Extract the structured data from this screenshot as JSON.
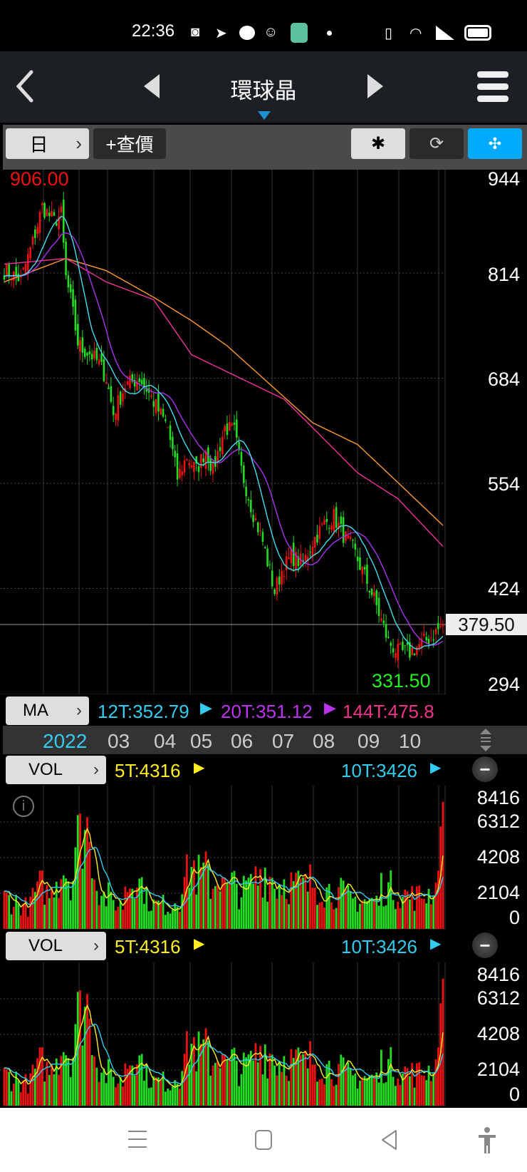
{
  "status_bar": {
    "time": "22:36",
    "icons": [
      "discord-icon",
      "telegram-icon",
      "line-icon",
      "gomaji-icon",
      "upload-icon",
      "dot-icon",
      "vibrate-icon",
      "wifi-icon",
      "signal-icon",
      "battery-icon"
    ]
  },
  "nav": {
    "title": "環球晶",
    "back_icon": "chevron-left-icon",
    "prev_icon": "triangle-left-icon",
    "next_icon": "triangle-right-icon",
    "menu_icon": "hamburger-icon"
  },
  "toolbar": {
    "period_label": "日",
    "quote_label": "+查價",
    "settings_icon": "gear-icon",
    "rotate_icon": "rotate-icon",
    "collapse_icon": "collapse-icon",
    "accent": "#00aaff"
  },
  "price_chart": {
    "high_label": "906.00",
    "low_label": "331.50",
    "last_price": "379.50",
    "y_ticks": [
      "944",
      "814",
      "684",
      "554",
      "424",
      "294"
    ]
  },
  "ma_row": {
    "button": "MA",
    "items": [
      {
        "text": "12T:352.79",
        "color": "#33ccee",
        "trend": "up"
      },
      {
        "text": "20T:351.12",
        "color": "#bb33ee",
        "trend": "down"
      },
      {
        "text": "144T:475.8",
        "color": "#ee3388"
      }
    ]
  },
  "date_axis": {
    "year": "2022",
    "months": [
      "03",
      "04",
      "05",
      "06",
      "07",
      "08",
      "09",
      "10"
    ]
  },
  "vol_panels": [
    {
      "button": "VOL",
      "ma5": "5T:4316",
      "ma10": "10T:3426",
      "y_ticks": [
        "8416",
        "6312",
        "4208",
        "2104",
        "0"
      ]
    },
    {
      "button": "VOL",
      "ma5": "5T:4316",
      "ma10": "10T:3426",
      "y_ticks": [
        "8416",
        "6312",
        "4208",
        "2104",
        "0"
      ]
    }
  ],
  "chart_data": {
    "type": "candlestick",
    "y_range": [
      294,
      944
    ],
    "colors": {
      "up": "#ee1111",
      "down": "#22dd22",
      "ma12": "#44ddee",
      "ma20": "#aa33ee",
      "ma144": "#ee3399",
      "ma_long": "#ff9933"
    },
    "close_anchors": [
      [
        0,
        817
      ],
      [
        7,
        806
      ],
      [
        12,
        852
      ],
      [
        16,
        896
      ],
      [
        21,
        878
      ],
      [
        24,
        887
      ],
      [
        26,
        808
      ],
      [
        28,
        781
      ],
      [
        31,
        728
      ],
      [
        33,
        719
      ],
      [
        36,
        715
      ],
      [
        40,
        702
      ],
      [
        43,
        684
      ],
      [
        46,
        640
      ],
      [
        51,
        675
      ],
      [
        57,
        684
      ],
      [
        60,
        671
      ],
      [
        64,
        649
      ],
      [
        69,
        623
      ],
      [
        73,
        561
      ],
      [
        77,
        587
      ],
      [
        81,
        570
      ],
      [
        85,
        596
      ],
      [
        88,
        570
      ],
      [
        93,
        623
      ],
      [
        97,
        618
      ],
      [
        100,
        570
      ],
      [
        105,
        517
      ],
      [
        109,
        482
      ],
      [
        114,
        420
      ],
      [
        117,
        446
      ],
      [
        121,
        464
      ],
      [
        126,
        455
      ],
      [
        130,
        482
      ],
      [
        135,
        504
      ],
      [
        139,
        513
      ],
      [
        142,
        495
      ],
      [
        147,
        473
      ],
      [
        151,
        446
      ],
      [
        156,
        411
      ],
      [
        162,
        358
      ],
      [
        166,
        345
      ],
      [
        171,
        345
      ],
      [
        175,
        354
      ],
      [
        181,
        367
      ],
      [
        185,
        379.5
      ]
    ],
    "ma144_anchors": [
      [
        0,
        825
      ],
      [
        26,
        832
      ],
      [
        43,
        803
      ],
      [
        63,
        781
      ],
      [
        79,
        713
      ],
      [
        118,
        658
      ],
      [
        130,
        623
      ],
      [
        149,
        567
      ],
      [
        166,
        535
      ],
      [
        185,
        476
      ]
    ],
    "ma_long_anchors": [
      [
        0,
        803
      ],
      [
        26,
        832
      ],
      [
        43,
        817
      ],
      [
        63,
        784
      ],
      [
        79,
        755
      ],
      [
        94,
        724
      ],
      [
        130,
        629
      ],
      [
        149,
        602
      ],
      [
        166,
        555
      ],
      [
        185,
        502
      ]
    ],
    "volume_every_3_days": [
      1900,
      1700,
      1500,
      1400,
      2200,
      2600,
      2200,
      3200,
      3800,
      3300,
      5500,
      6500,
      4800,
      2600,
      2000,
      1700,
      1500,
      2800,
      3500,
      2800,
      1800,
      1500,
      1500,
      1400,
      1900,
      3200,
      3800,
      3300,
      3400,
      2800,
      3500,
      2500,
      2700,
      2300,
      2600,
      3100,
      3600,
      3200,
      2800,
      3000,
      2800,
      2700,
      2600,
      2900,
      2700,
      2400,
      2300,
      2200,
      1900,
      1800,
      1800,
      1700,
      1700,
      2600,
      2500,
      2300,
      2100,
      2000,
      2000,
      2200,
      2500,
      6000
    ],
    "volume_max": 8416
  },
  "bottom_nav": {
    "icons": [
      "recents-icon",
      "home-icon",
      "back-icon",
      "accessibility-icon"
    ]
  }
}
